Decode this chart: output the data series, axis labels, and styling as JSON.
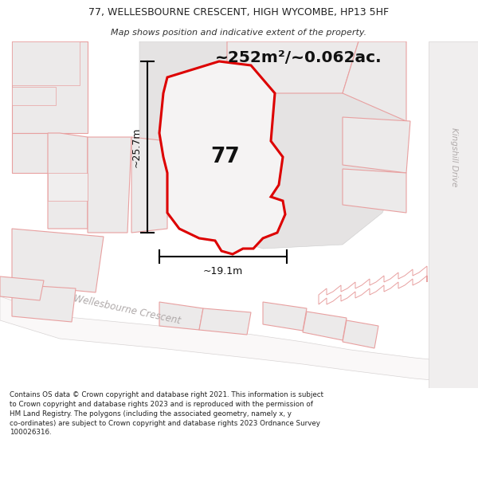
{
  "title_line1": "77, WELLESBOURNE CRESCENT, HIGH WYCOMBE, HP13 5HF",
  "title_line2": "Map shows position and indicative extent of the property.",
  "area_text": "~252m²/~0.062ac.",
  "label_77": "77",
  "dim_height": "~25.7m",
  "dim_width": "~19.1m",
  "street_label": "Wellesbourne Crescent",
  "road_label": "Kingshill Drive",
  "footer": "Contains OS data © Crown copyright and database right 2021. This information is subject to Crown copyright and database rights 2023 and is reproduced with the permission of HM Land Registry. The polygons (including the associated geometry, namely x, y co-ordinates) are subject to Crown copyright and database rights 2023 Ordnance Survey 100026316.",
  "map_bg": "#f2f0f0",
  "building_fill": "#e8e6e6",
  "building_edge": "#e8a0a0",
  "road_fill": "#faf8f8",
  "road_edge": "#d8d4d4",
  "plot_fill": "#f5f3f3",
  "plot_stroke": "#dd0000",
  "kingshill_fill": "#f0eeee",
  "grey_block_fill": "#e5e3e3",
  "title_footer_bg": "#ffffff"
}
